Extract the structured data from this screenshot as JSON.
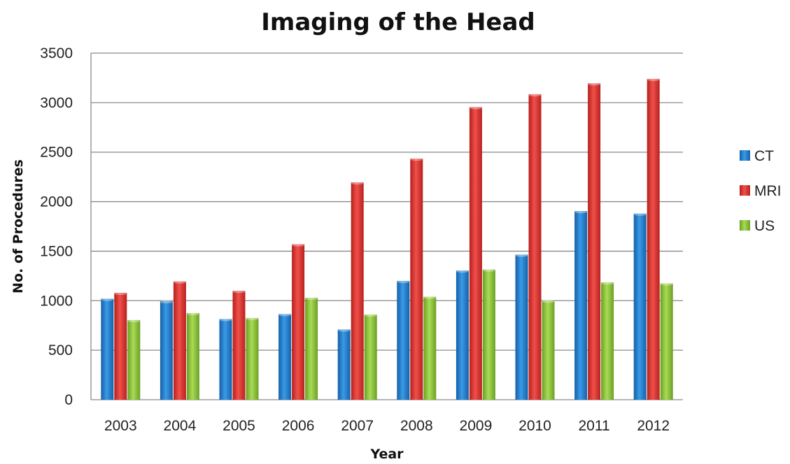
{
  "chart_data": {
    "type": "bar",
    "title": "Imaging of the Head",
    "xlabel": "Year",
    "ylabel": "No. of Procedures",
    "categories": [
      "2003",
      "2004",
      "2005",
      "2006",
      "2007",
      "2008",
      "2009",
      "2010",
      "2011",
      "2012"
    ],
    "series": [
      {
        "name": "CT",
        "color": "#1f7fd2",
        "values": [
          1020,
          995,
          815,
          865,
          710,
          1200,
          1305,
          1465,
          1905,
          1880
        ]
      },
      {
        "name": "MRI",
        "color": "#e0302d",
        "values": [
          1080,
          1195,
          1100,
          1570,
          2195,
          2435,
          2955,
          3085,
          3195,
          3240
        ]
      },
      {
        "name": "US",
        "color": "#8cc43a",
        "values": [
          805,
          875,
          825,
          1030,
          860,
          1040,
          1315,
          1000,
          1185,
          1175
        ]
      }
    ],
    "ylim": [
      0,
      3500
    ],
    "yticks": [
      0,
      500,
      1000,
      1500,
      2000,
      2500,
      3000,
      3500
    ],
    "grid": true,
    "legend": "right"
  }
}
